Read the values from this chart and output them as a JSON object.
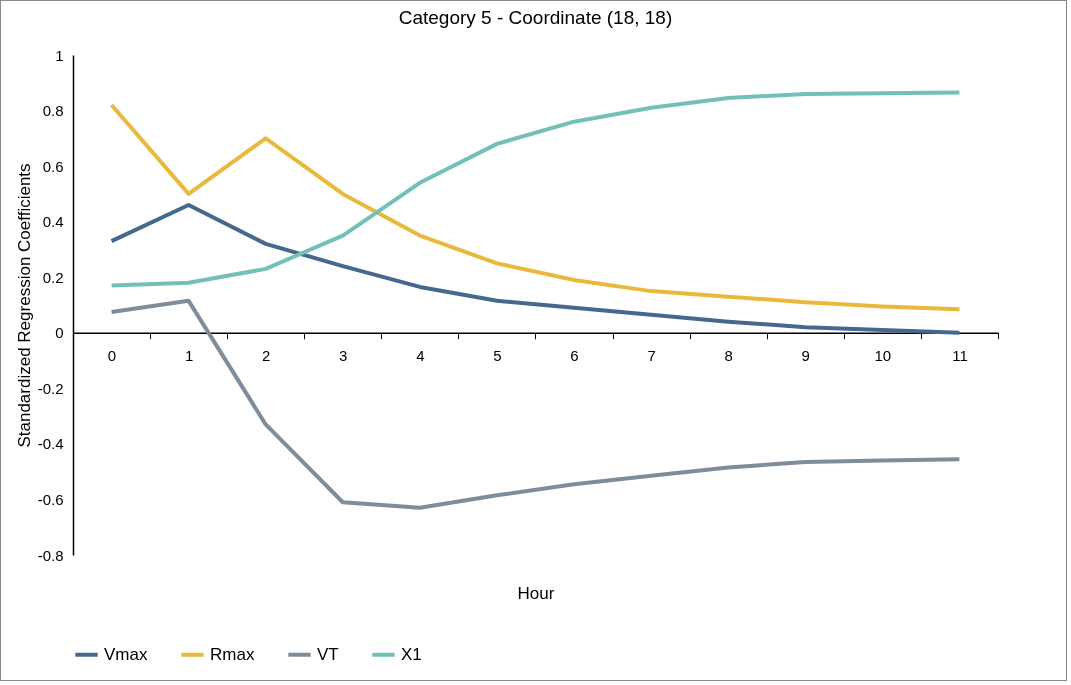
{
  "chart_data": {
    "type": "line",
    "title": "Category 5 - Coordinate (18, 18)",
    "xlabel": "Hour",
    "ylabel": "Standardized Regression Coefficients",
    "categories": [
      "0",
      "1",
      "2",
      "3",
      "4",
      "5",
      "6",
      "7",
      "8",
      "9",
      "10",
      "11"
    ],
    "series": [
      {
        "name": "Vmax",
        "color": "#44698f",
        "values": [
          0.33,
          0.46,
          0.32,
          0.24,
          0.165,
          0.115,
          0.09,
          0.065,
          0.04,
          0.02,
          0.01,
          0.0
        ]
      },
      {
        "name": "Rmax",
        "color": "#e8b93c",
        "values": [
          0.82,
          0.5,
          0.7,
          0.5,
          0.35,
          0.25,
          0.19,
          0.15,
          0.13,
          0.11,
          0.095,
          0.085
        ]
      },
      {
        "name": "VT",
        "color": "#7f8c9a",
        "values": [
          0.075,
          0.115,
          -0.33,
          -0.61,
          -0.63,
          -0.585,
          -0.545,
          -0.515,
          -0.485,
          -0.465,
          -0.46,
          -0.455
        ]
      },
      {
        "name": "X1",
        "color": "#73c0b8",
        "values": [
          0.17,
          0.18,
          0.23,
          0.35,
          0.54,
          0.68,
          0.76,
          0.81,
          0.845,
          0.86,
          0.862,
          0.865
        ]
      }
    ],
    "ylim": [
      -0.8,
      1
    ],
    "yticks": [
      -0.8,
      -0.6,
      -0.4,
      -0.2,
      0,
      0.2,
      0.4,
      0.6,
      0.8,
      1
    ],
    "grid": false,
    "legend": "bottom",
    "line_style": "solid",
    "marker": "none"
  }
}
